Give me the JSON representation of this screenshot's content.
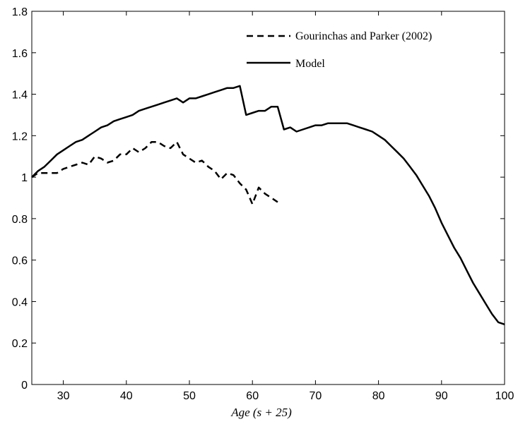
{
  "chart_data": {
    "type": "line",
    "title": "",
    "xlabel": "Age (s + 25)",
    "ylabel": "",
    "xlim": [
      25,
      100
    ],
    "ylim": [
      0,
      1.8
    ],
    "xticks": [
      30,
      40,
      50,
      60,
      70,
      80,
      90,
      100
    ],
    "yticks": [
      0,
      0.2,
      0.4,
      0.6,
      0.8,
      1,
      1.2,
      1.4,
      1.6,
      1.8
    ],
    "ytick_labels": [
      "0",
      "0.2",
      "0.4",
      "0.6",
      "0.8",
      "1",
      "1.2",
      "1.4",
      "1.6",
      "1.8"
    ],
    "grid": false,
    "legend_position": "top-right",
    "series": [
      {
        "name": "Gourinchas and Parker (2002)",
        "style": "dashed",
        "color": "#000000",
        "x": [
          25,
          26,
          27,
          28,
          29,
          30,
          31,
          32,
          33,
          34,
          35,
          36,
          37,
          38,
          39,
          40,
          41,
          42,
          43,
          44,
          45,
          46,
          47,
          48,
          49,
          50,
          51,
          52,
          53,
          54,
          55,
          56,
          57,
          58,
          59,
          60,
          61,
          62,
          63,
          64
        ],
        "y": [
          1.0,
          1.02,
          1.02,
          1.02,
          1.02,
          1.04,
          1.05,
          1.06,
          1.07,
          1.06,
          1.1,
          1.09,
          1.07,
          1.08,
          1.11,
          1.11,
          1.14,
          1.12,
          1.14,
          1.17,
          1.17,
          1.15,
          1.14,
          1.17,
          1.11,
          1.09,
          1.07,
          1.08,
          1.05,
          1.03,
          0.99,
          1.02,
          1.01,
          0.97,
          0.94,
          0.87,
          0.95,
          0.92,
          0.9,
          0.88
        ]
      },
      {
        "name": "Model",
        "style": "solid",
        "color": "#000000",
        "x": [
          25,
          26,
          27,
          28,
          29,
          30,
          31,
          32,
          33,
          34,
          35,
          36,
          37,
          38,
          39,
          40,
          41,
          42,
          43,
          44,
          45,
          46,
          47,
          48,
          49,
          50,
          51,
          52,
          53,
          54,
          55,
          56,
          57,
          58,
          59,
          60,
          61,
          62,
          63,
          64,
          65,
          66,
          67,
          68,
          69,
          70,
          71,
          72,
          73,
          74,
          75,
          76,
          77,
          78,
          79,
          80,
          81,
          82,
          83,
          84,
          85,
          86,
          87,
          88,
          89,
          90,
          91,
          92,
          93,
          94,
          95,
          96,
          97,
          98,
          99,
          100
        ],
        "y": [
          1.0,
          1.03,
          1.05,
          1.08,
          1.11,
          1.13,
          1.15,
          1.17,
          1.18,
          1.2,
          1.22,
          1.24,
          1.25,
          1.27,
          1.28,
          1.29,
          1.3,
          1.32,
          1.33,
          1.34,
          1.35,
          1.36,
          1.37,
          1.38,
          1.36,
          1.38,
          1.38,
          1.39,
          1.4,
          1.41,
          1.42,
          1.43,
          1.43,
          1.44,
          1.3,
          1.31,
          1.32,
          1.32,
          1.34,
          1.34,
          1.23,
          1.24,
          1.22,
          1.23,
          1.24,
          1.25,
          1.25,
          1.26,
          1.26,
          1.26,
          1.26,
          1.25,
          1.24,
          1.23,
          1.22,
          1.2,
          1.18,
          1.15,
          1.12,
          1.09,
          1.05,
          1.01,
          0.96,
          0.91,
          0.85,
          0.78,
          0.72,
          0.66,
          0.61,
          0.55,
          0.49,
          0.44,
          0.39,
          0.34,
          0.3,
          0.29
        ]
      }
    ]
  }
}
